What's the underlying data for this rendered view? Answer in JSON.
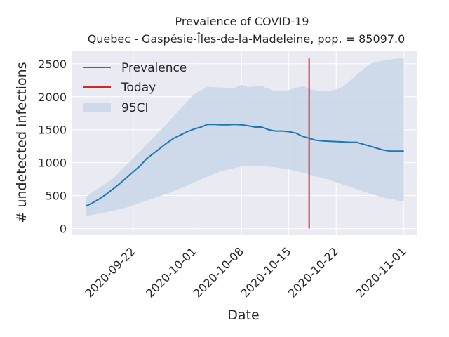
{
  "chart_data": {
    "type": "line",
    "title": "Prevalence of COVID-19",
    "subtitle": "Quebec - Gaspésie-Îles-de-la-Madeleine, pop. = 85097.0",
    "xlabel": "Date",
    "ylabel": "# undetected infections",
    "x_ticks": [
      "2020-09-22",
      "2020-10-01",
      "2020-10-08",
      "2020-10-15",
      "2020-10-22",
      "2020-11-01"
    ],
    "y_ticks": [
      0,
      500,
      1000,
      1500,
      2000,
      2500
    ],
    "ylim": [
      -100,
      2700
    ],
    "xlim": [
      "2020-09-13",
      "2020-11-03"
    ],
    "grid": true,
    "legend_position": "top-left",
    "today": "2020-10-18",
    "colors": {
      "background": "#eaeaf2",
      "grid": "#ffffff",
      "prevalence": "#1f77b4",
      "band": "#c9d6e8",
      "today": "#d62728"
    },
    "series": [
      {
        "name": "Prevalence",
        "x": [
          "2020-09-15",
          "2020-09-16",
          "2020-09-17",
          "2020-09-18",
          "2020-09-19",
          "2020-09-20",
          "2020-09-21",
          "2020-09-22",
          "2020-09-23",
          "2020-09-24",
          "2020-09-25",
          "2020-09-26",
          "2020-09-27",
          "2020-09-28",
          "2020-09-29",
          "2020-09-30",
          "2020-10-01",
          "2020-10-02",
          "2020-10-03",
          "2020-10-04",
          "2020-10-05",
          "2020-10-06",
          "2020-10-07",
          "2020-10-08",
          "2020-10-09",
          "2020-10-10",
          "2020-10-11",
          "2020-10-12",
          "2020-10-13",
          "2020-10-14",
          "2020-10-15",
          "2020-10-16",
          "2020-10-17",
          "2020-10-18",
          "2020-10-19",
          "2020-10-20",
          "2020-10-21",
          "2020-10-22",
          "2020-10-23",
          "2020-10-24",
          "2020-10-25",
          "2020-10-26",
          "2020-10-27",
          "2020-10-28",
          "2020-10-29",
          "2020-10-30",
          "2020-10-31",
          "2020-11-01"
        ],
        "values": [
          340,
          390,
          450,
          520,
          600,
          680,
          770,
          860,
          950,
          1060,
          1140,
          1220,
          1300,
          1370,
          1420,
          1470,
          1510,
          1540,
          1580,
          1580,
          1575,
          1575,
          1580,
          1575,
          1560,
          1540,
          1540,
          1500,
          1480,
          1480,
          1470,
          1450,
          1400,
          1370,
          1340,
          1330,
          1325,
          1320,
          1315,
          1310,
          1310,
          1280,
          1250,
          1220,
          1190,
          1175,
          1175,
          1175
        ]
      },
      {
        "name": "Today",
        "x": [
          "2020-10-18",
          "2020-10-18"
        ],
        "values": [
          0,
          2580
        ]
      },
      {
        "name": "95CI",
        "x": [
          "2020-09-15",
          "2020-09-17",
          "2020-09-19",
          "2020-09-21",
          "2020-09-23",
          "2020-09-25",
          "2020-09-27",
          "2020-09-29",
          "2020-10-01",
          "2020-10-03",
          "2020-10-05",
          "2020-10-07",
          "2020-10-08",
          "2020-10-09",
          "2020-10-11",
          "2020-10-13",
          "2020-10-15",
          "2020-10-17",
          "2020-10-19",
          "2020-10-21",
          "2020-10-23",
          "2020-10-25",
          "2020-10-27",
          "2020-10-29",
          "2020-10-31",
          "2020-11-01"
        ],
        "lower": [
          190,
          230,
          270,
          320,
          390,
          460,
          530,
          610,
          700,
          790,
          870,
          920,
          940,
          950,
          950,
          930,
          900,
          850,
          790,
          740,
          670,
          600,
          530,
          470,
          430,
          410
        ],
        "upper": [
          480,
          620,
          760,
          960,
          1170,
          1380,
          1590,
          1820,
          2040,
          2150,
          2140,
          2130,
          2180,
          2150,
          2160,
          2080,
          2100,
          2160,
          2090,
          2080,
          2150,
          2330,
          2500,
          2550,
          2580,
          2580
        ]
      }
    ]
  }
}
